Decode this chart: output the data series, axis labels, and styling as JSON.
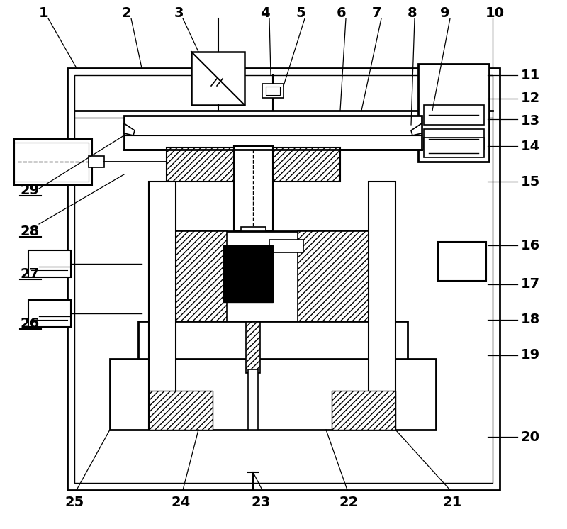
{
  "bg_color": "#ffffff",
  "lc": "#000000",
  "fig_w": 8.0,
  "fig_h": 7.46,
  "dpi": 100
}
